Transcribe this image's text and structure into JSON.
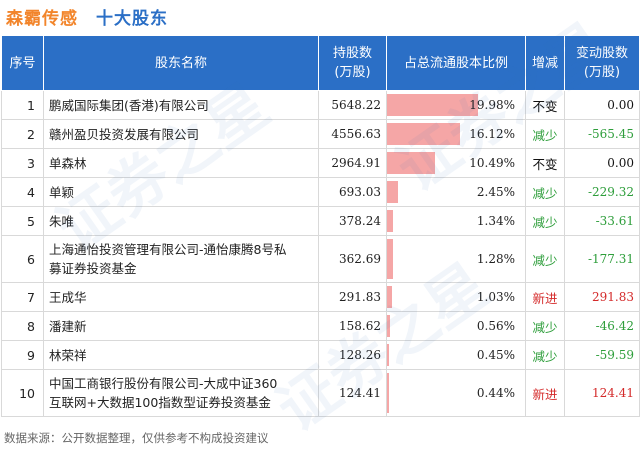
{
  "header": {
    "company": "森霸传感",
    "section": "十大股东"
  },
  "columns": {
    "idx": "序号",
    "name": "股东名称",
    "shares_line1": "持股数",
    "shares_line2": "(万股)",
    "ratio": "占总流通股本比例",
    "trend": "增减",
    "change_line1": "变动股数",
    "change_line2": "(万股)"
  },
  "rows": [
    {
      "idx": "1",
      "name_line1": "鹏威国际集团(香港)有限公司",
      "name_line2": "",
      "shares": "5648.22",
      "ratio_text": "19.98%",
      "ratio": 19.98,
      "trend": "不变",
      "trend_type": "flat",
      "change": "0.00"
    },
    {
      "idx": "2",
      "name_line1": "赣州盈贝投资发展有限公司",
      "name_line2": "",
      "shares": "4556.63",
      "ratio_text": "16.12%",
      "ratio": 16.12,
      "trend": "减少",
      "trend_type": "down",
      "change": "-565.45"
    },
    {
      "idx": "3",
      "name_line1": "单森林",
      "name_line2": "",
      "shares": "2964.91",
      "ratio_text": "10.49%",
      "ratio": 10.49,
      "trend": "不变",
      "trend_type": "flat",
      "change": "0.00"
    },
    {
      "idx": "4",
      "name_line1": "单颖",
      "name_line2": "",
      "shares": "693.03",
      "ratio_text": "2.45%",
      "ratio": 2.45,
      "trend": "减少",
      "trend_type": "down",
      "change": "-229.32"
    },
    {
      "idx": "5",
      "name_line1": "朱唯",
      "name_line2": "",
      "shares": "378.24",
      "ratio_text": "1.34%",
      "ratio": 1.34,
      "trend": "减少",
      "trend_type": "down",
      "change": "-33.61"
    },
    {
      "idx": "6",
      "name_line1": "上海通怡投资管理有限公司-通怡康腾8号私",
      "name_line2": "募证券投资基金",
      "shares": "362.69",
      "ratio_text": "1.28%",
      "ratio": 1.28,
      "trend": "减少",
      "trend_type": "down",
      "change": "-177.31"
    },
    {
      "idx": "7",
      "name_line1": "王成华",
      "name_line2": "",
      "shares": "291.83",
      "ratio_text": "1.03%",
      "ratio": 1.03,
      "trend": "新进",
      "trend_type": "new",
      "change": "291.83"
    },
    {
      "idx": "8",
      "name_line1": "潘建新",
      "name_line2": "",
      "shares": "158.62",
      "ratio_text": "0.56%",
      "ratio": 0.56,
      "trend": "减少",
      "trend_type": "down",
      "change": "-46.42"
    },
    {
      "idx": "9",
      "name_line1": "林荣祥",
      "name_line2": "",
      "shares": "128.26",
      "ratio_text": "0.45%",
      "ratio": 0.45,
      "trend": "减少",
      "trend_type": "down",
      "change": "-59.59"
    },
    {
      "idx": "10",
      "name_line1": "中国工商银行股份有限公司-大成中证360",
      "name_line2": "互联网+大数据100指数型证券投资基金",
      "shares": "124.41",
      "ratio_text": "0.44%",
      "ratio": 0.44,
      "trend": "新进",
      "trend_type": "new",
      "change": "124.41"
    }
  ],
  "ratio_scale_max": 22,
  "colors": {
    "header_bg": "#2b6fc6",
    "company": "#f2852b",
    "bar": "#f5a6a6",
    "down": "#2e9e3b",
    "new": "#d42a2a"
  },
  "footer": "数据来源：公开数据整理，仅供参考不构成投资建议",
  "watermark": "证券之星"
}
